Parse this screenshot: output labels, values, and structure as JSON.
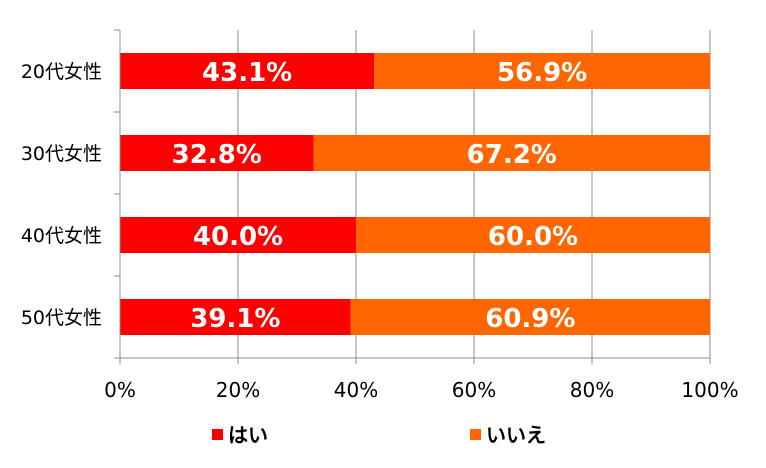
{
  "chart_data": {
    "type": "bar",
    "orientation": "horizontal",
    "stacked": true,
    "percent": true,
    "categories": [
      "20代女性",
      "30代女性",
      "40代女性",
      "50代女性"
    ],
    "series": [
      {
        "name": "はい",
        "values": [
          43.1,
          32.8,
          40.0,
          39.1
        ],
        "labels": [
          "43.1%",
          "32.8%",
          "40.0%",
          "39.1%"
        ],
        "color": "#ff0000"
      },
      {
        "name": "いいえ",
        "values": [
          56.9,
          67.2,
          60.0,
          60.9
        ],
        "labels": [
          "56.9%",
          "67.2%",
          "60.0%",
          "60.9%"
        ],
        "color": "#ff6600"
      }
    ],
    "xlim": [
      0,
      100
    ],
    "xticks": [
      0,
      20,
      40,
      60,
      80,
      100
    ],
    "xtick_labels": [
      "0%",
      "20%",
      "40%",
      "60%",
      "80%",
      "100%"
    ],
    "grid": true,
    "legend_position": "bottom"
  }
}
